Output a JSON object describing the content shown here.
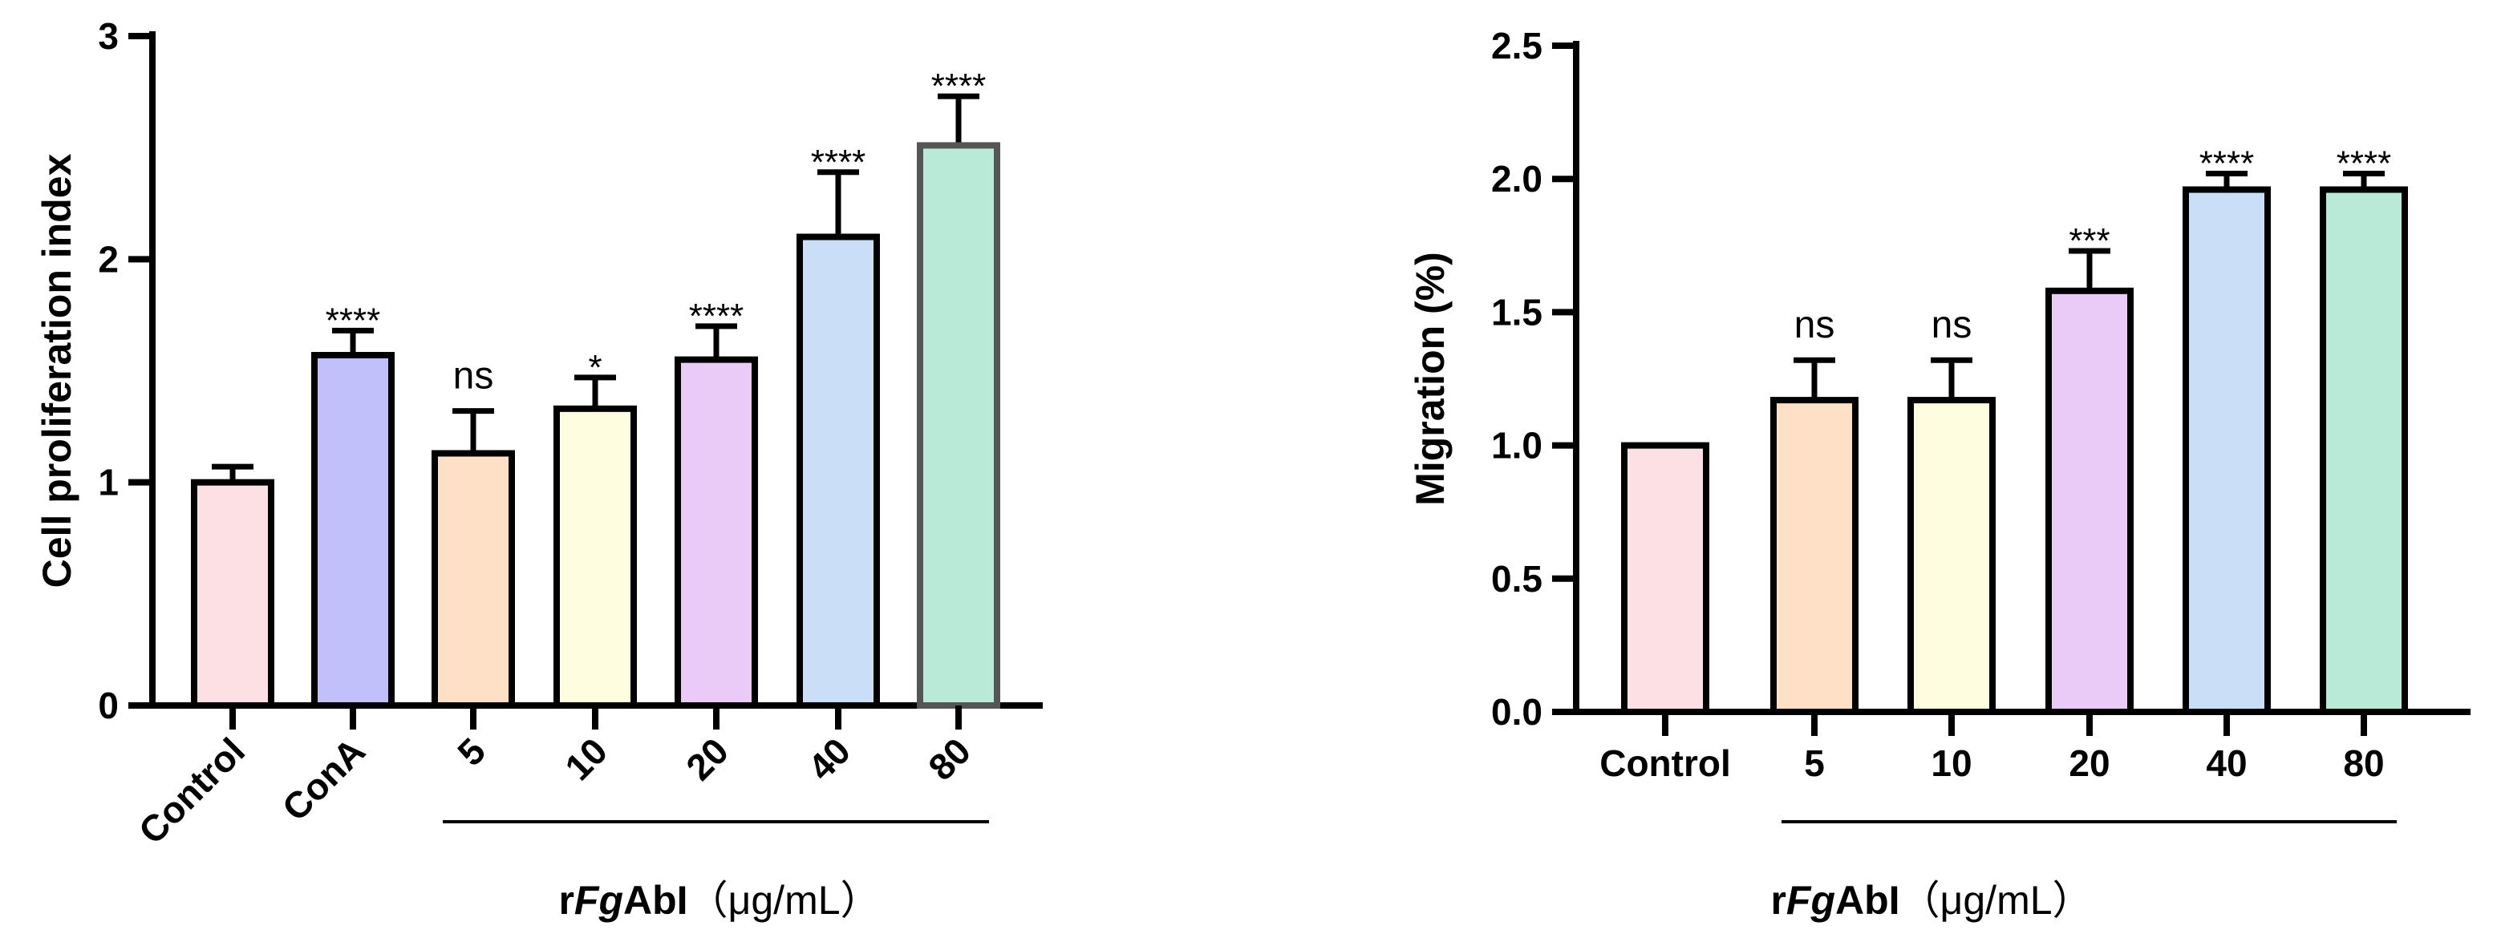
{
  "chart_data": [
    {
      "type": "bar",
      "title": "",
      "ylabel": "Cell proliferation index",
      "xlabel_prefix": "r",
      "xlabel_italic": "Fg",
      "xlabel_bold": "AbI",
      "xlabel_unit": "（μg/mL）",
      "ylim": [
        0,
        3
      ],
      "yticks": [
        "0",
        "1",
        "2",
        "3"
      ],
      "categories": [
        "Control",
        "ConA",
        "5",
        "10",
        "20",
        "40",
        "80"
      ],
      "values": [
        1.0,
        1.57,
        1.13,
        1.33,
        1.55,
        2.1,
        2.51
      ],
      "errors": [
        0.07,
        0.11,
        0.19,
        0.14,
        0.15,
        0.29,
        0.22
      ],
      "significance": [
        "",
        "****",
        "ns",
        "*",
        "****",
        "****",
        "****"
      ],
      "colors": [
        "#fde0e3",
        "#c2c0fb",
        "#fde0c6",
        "#fefde0",
        "#eacbf8",
        "#cadef7",
        "#b8ead7"
      ],
      "bracket_from": 2,
      "bracket_to": 6,
      "grid": false
    },
    {
      "type": "bar",
      "title": "",
      "ylabel": "Migration (%)",
      "xlabel_prefix": "r",
      "xlabel_italic": "Fg",
      "xlabel_bold": "AbI",
      "xlabel_unit": "（μg/mL）",
      "ylim": [
        0,
        2.5
      ],
      "yticks": [
        "0.0",
        "0.5",
        "1.0",
        "1.5",
        "2.0",
        "2.5"
      ],
      "categories": [
        "Control",
        "5",
        "10",
        "20",
        "40",
        "80"
      ],
      "values": [
        1.0,
        1.17,
        1.17,
        1.58,
        1.96,
        1.96
      ],
      "errors": [
        0.0,
        0.15,
        0.15,
        0.15,
        0.06,
        0.06
      ],
      "significance": [
        "",
        "ns",
        "ns",
        "***",
        "****",
        "****"
      ],
      "colors": [
        "#fde0e3",
        "#fde0c6",
        "#fefde0",
        "#eacbf8",
        "#cadef7",
        "#b8ead7"
      ],
      "bracket_from": 1,
      "bracket_to": 5,
      "grid": false
    }
  ]
}
